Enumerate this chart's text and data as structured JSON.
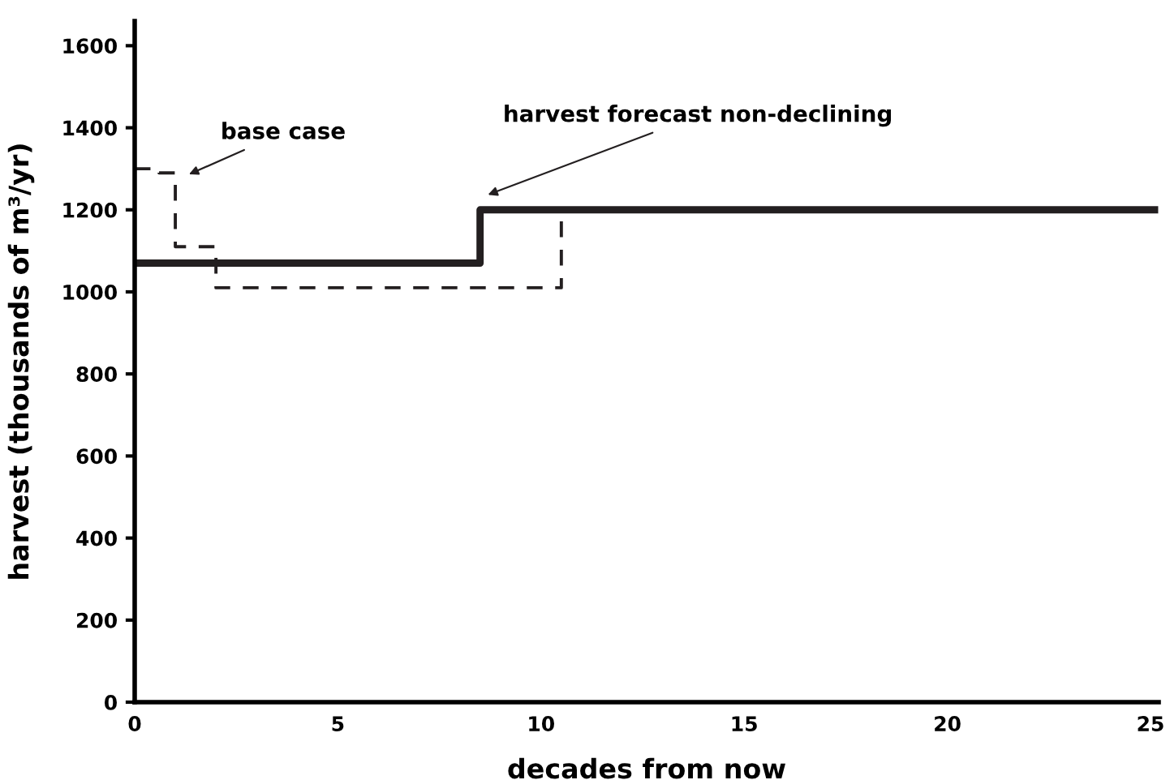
{
  "chart_data": {
    "type": "step",
    "xlabel": "decades from now",
    "ylabel": "harvest (thousands of m³/yr)",
    "xlim": [
      0,
      25.2
    ],
    "xticks": [
      0,
      5,
      10,
      15,
      20,
      25
    ],
    "ylim": [
      0,
      1660
    ],
    "yticks": [
      0,
      200,
      400,
      600,
      800,
      1000,
      1200,
      1400,
      1600
    ],
    "grid": false,
    "legend": false,
    "series": [
      {
        "color": "#231f20",
        "line_style": "dashed",
        "x": [
          0,
          0.6,
          1,
          2,
          10.5,
          25.1
        ],
        "values": [
          1300,
          1290,
          1110,
          1010,
          1200,
          1200
        ]
      },
      {
        "color": "#231f20",
        "line_style": "solid",
        "x": [
          0,
          8.5,
          25.1
        ],
        "values": [
          1070,
          1200,
          1200
        ]
      }
    ],
    "annotations": [
      "base case",
      "harvest forecast non-declining"
    ]
  }
}
